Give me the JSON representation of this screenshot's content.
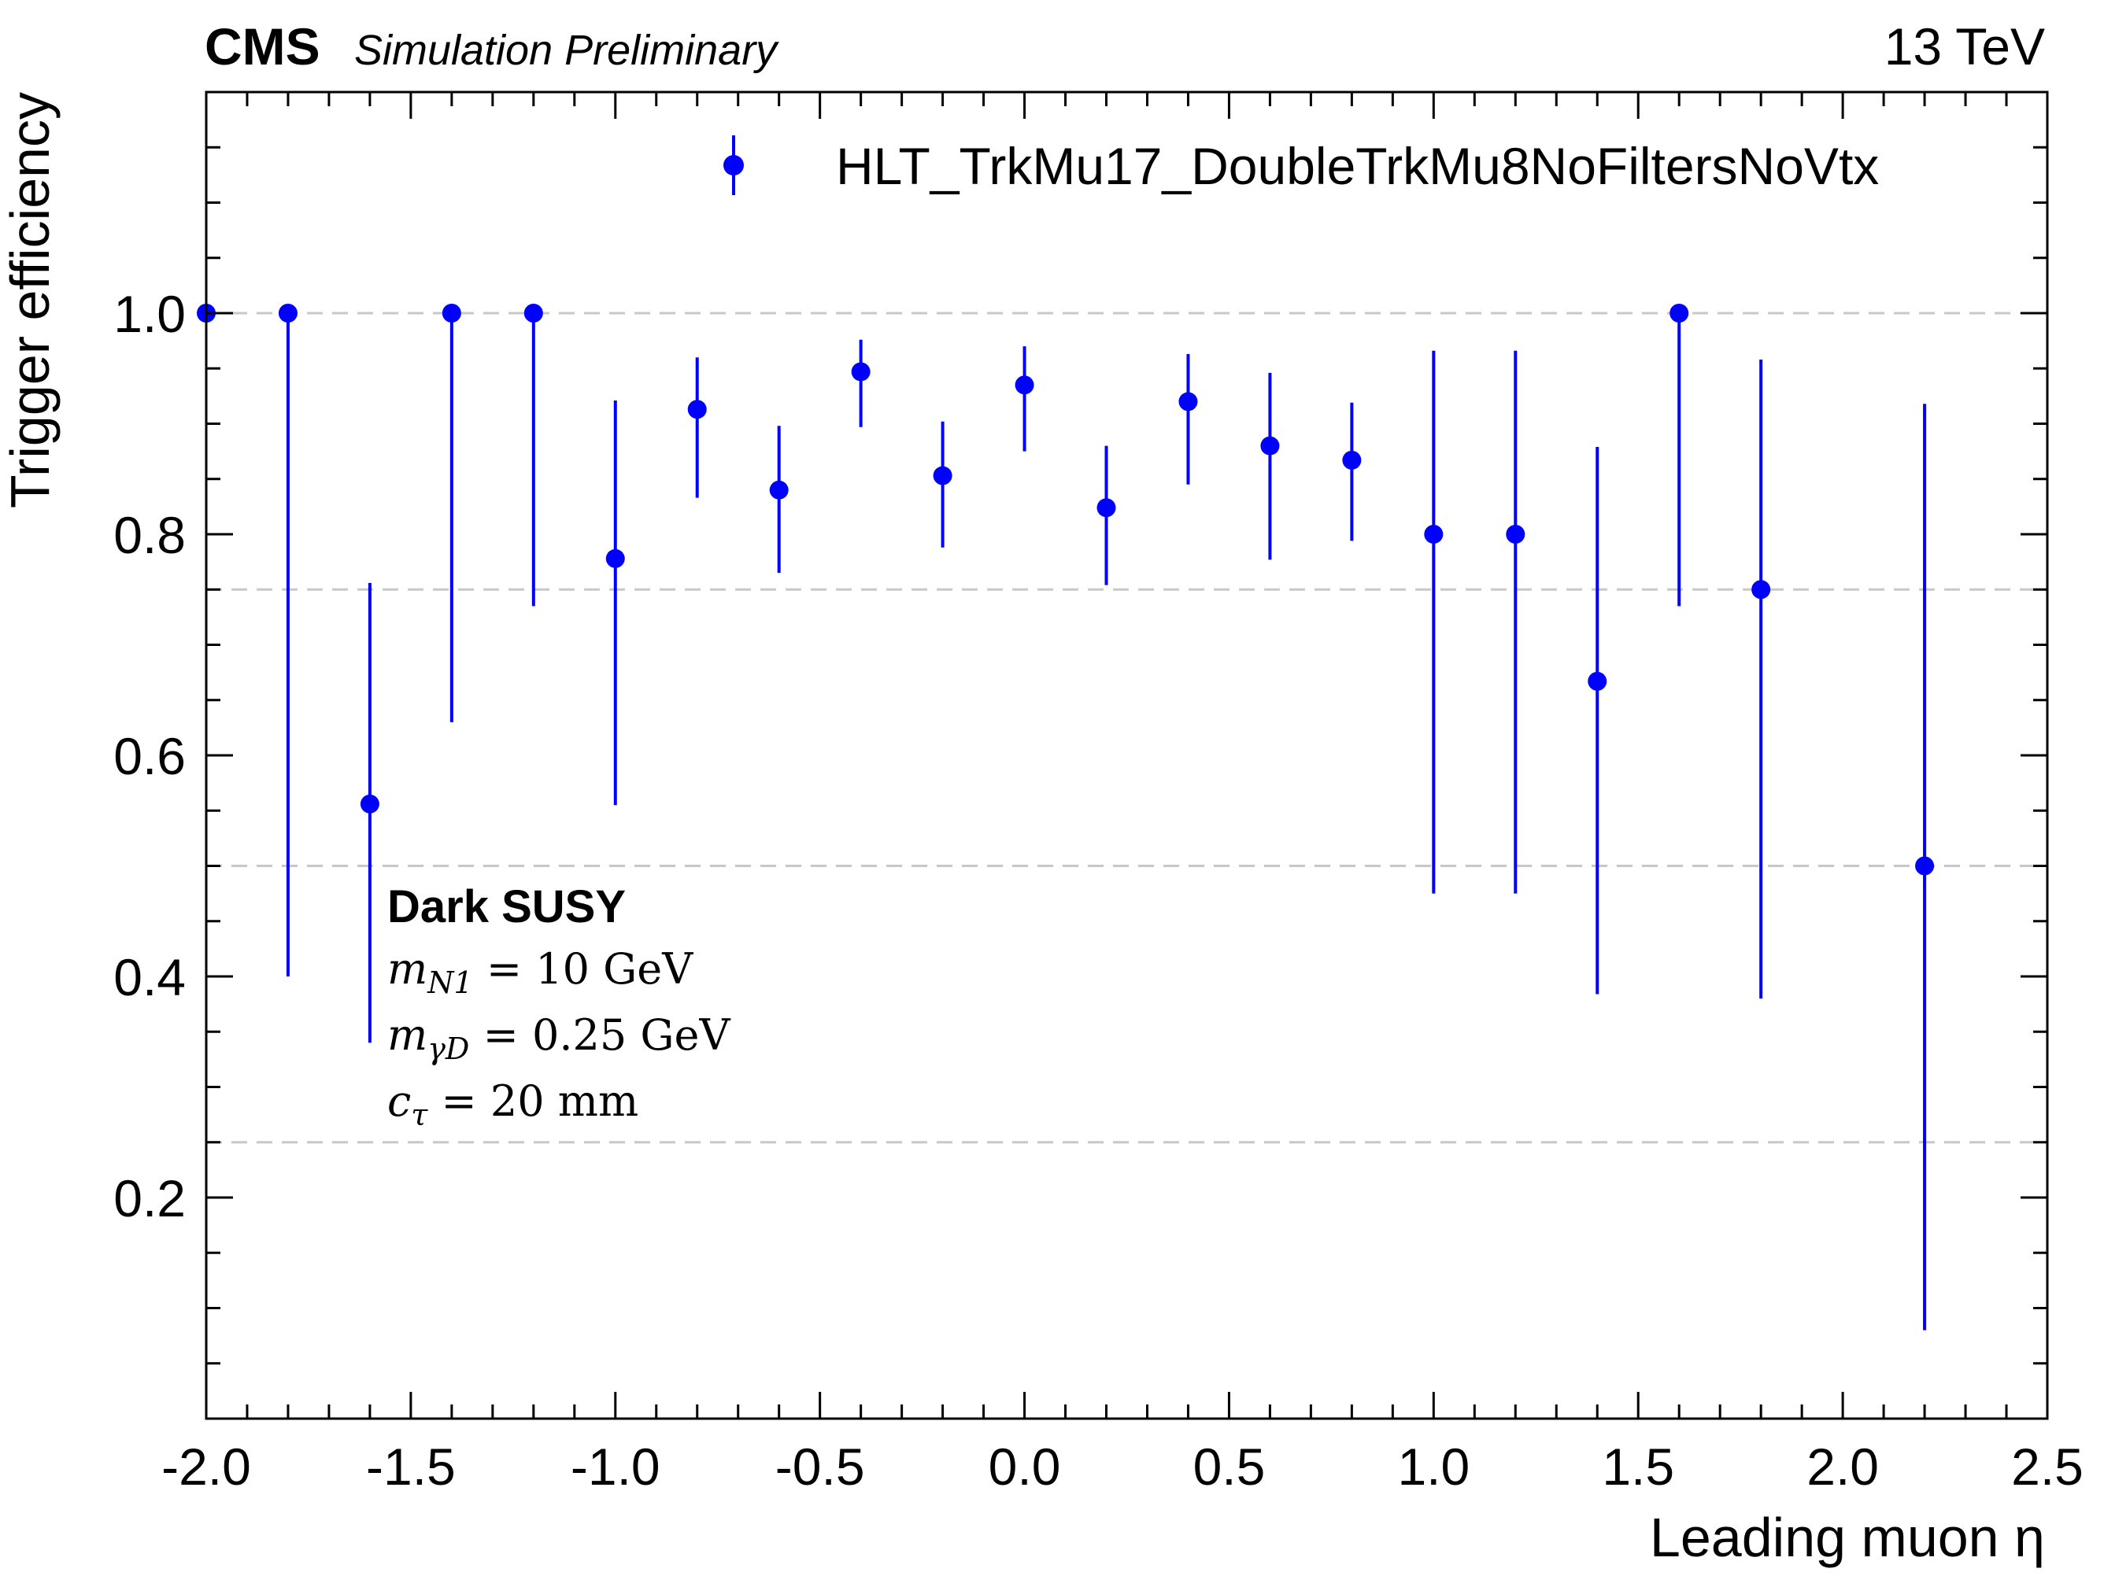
{
  "header": {
    "experiment": "CMS",
    "status": "Simulation Preliminary",
    "energy": "13 TeV"
  },
  "annotation": {
    "title": "Dark SUSY",
    "lines": [
      {
        "symbol": "m",
        "subscript": "N1",
        "rest": " = 10 GeV"
      },
      {
        "symbol": "m",
        "subscript": "γD",
        "rest": " = 0.25 GeV"
      },
      {
        "symbol": "c",
        "subscript": "τ",
        "rest": " = 20 mm"
      }
    ]
  },
  "chart_data": {
    "type": "scatter",
    "xlabel": "Leading muon η",
    "ylabel": "Trigger efficiency",
    "xlim": [
      -2.0,
      2.5
    ],
    "ylim": [
      0.0,
      1.2
    ],
    "xticks": [
      "-2.0",
      "-1.5",
      "-1.0",
      "-0.5",
      "0.0",
      "0.5",
      "1.0",
      "1.5",
      "2.0",
      "2.5"
    ],
    "yticks": [
      "0.2",
      "0.4",
      "0.6",
      "0.8",
      "1.0"
    ],
    "grid": "horizontal dashed at 0.25, 0.5, 0.75, 1.0",
    "legend_position": "top-right",
    "series": [
      {
        "name": "HLT_TrkMu17_DoubleTrkMu8NoFiltersNoVtx",
        "color": "#0000ff",
        "x": [
          -2.0,
          -1.8,
          -1.6,
          -1.4,
          -1.2,
          -1.0,
          -0.8,
          -0.6,
          -0.4,
          -0.2,
          0.0,
          0.2,
          0.4,
          0.6,
          0.8,
          1.0,
          1.2,
          1.4,
          1.6,
          1.8,
          2.2
        ],
        "y": [
          1.0,
          1.0,
          0.556,
          1.0,
          1.0,
          0.778,
          0.913,
          0.84,
          0.947,
          0.853,
          0.935,
          0.824,
          0.92,
          0.88,
          0.867,
          0.8,
          0.8,
          0.667,
          1.0,
          0.75,
          0.5
        ],
        "err_low": [
          0.0,
          0.6,
          0.216,
          0.37,
          0.265,
          0.223,
          0.08,
          0.075,
          0.05,
          0.065,
          0.06,
          0.07,
          0.075,
          0.103,
          0.073,
          0.325,
          0.325,
          0.283,
          0.265,
          0.37,
          0.42
        ],
        "err_high": [
          0.0,
          0.0,
          0.2,
          0.0,
          0.0,
          0.143,
          0.047,
          0.058,
          0.029,
          0.049,
          0.035,
          0.056,
          0.043,
          0.066,
          0.052,
          0.166,
          0.166,
          0.212,
          0.0,
          0.208,
          0.418
        ]
      }
    ]
  }
}
